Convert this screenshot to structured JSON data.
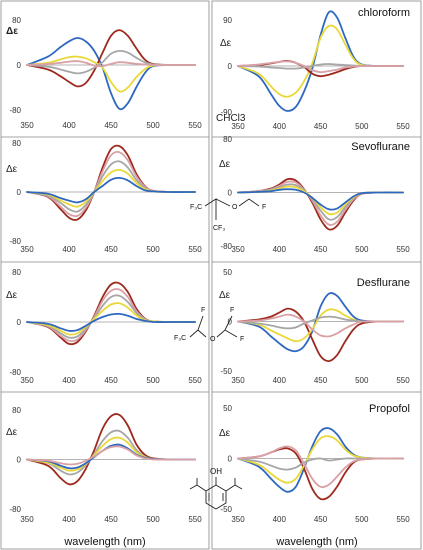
{
  "x_axis_label": "wavelength (nm)",
  "chart_data": [
    {
      "type": "line",
      "id": "chloroform-left",
      "title": "",
      "ylabel": "Δε",
      "xlim": [
        350,
        550
      ],
      "ylim": [
        -80,
        80
      ],
      "xticks": [
        350,
        400,
        450,
        500,
        550
      ],
      "yticks": [
        -80,
        0,
        80
      ],
      "x": [
        350,
        375,
        390,
        400,
        410,
        420,
        430,
        440,
        450,
        460,
        470,
        480,
        490,
        500,
        520,
        550
      ],
      "series": [
        {
          "color": "#2e68c0",
          "values": [
            0,
            15,
            32,
            42,
            48,
            42,
            25,
            -5,
            -50,
            -78,
            -68,
            -40,
            -15,
            -2,
            0,
            0
          ]
        },
        {
          "color": "#9e2a1e",
          "values": [
            0,
            -8,
            -20,
            -30,
            -38,
            -32,
            -10,
            22,
            52,
            62,
            52,
            30,
            10,
            2,
            0,
            0
          ]
        },
        {
          "color": "#e8d83a",
          "values": [
            0,
            4,
            10,
            14,
            15,
            12,
            5,
            -5,
            -30,
            -47,
            -40,
            -22,
            -8,
            -1,
            0,
            0
          ]
        },
        {
          "color": "#a6a6a6",
          "values": [
            0,
            -3,
            -8,
            -12,
            -15,
            -12,
            -5,
            5,
            20,
            25,
            22,
            13,
            5,
            1,
            0,
            0
          ]
        },
        {
          "color": "#d9a0a6",
          "values": [
            0,
            2,
            4,
            6,
            7,
            4,
            -1,
            -2,
            2,
            5,
            4,
            2,
            1,
            0,
            0,
            0
          ]
        }
      ]
    },
    {
      "type": "line",
      "id": "chloroform-right",
      "title": "chloroform",
      "ylabel": "Δε",
      "annotation": "CHCl3",
      "xlim": [
        350,
        550
      ],
      "ylim": [
        -90,
        90
      ],
      "xticks": [
        350,
        400,
        450,
        500,
        550
      ],
      "yticks": [
        -90,
        0,
        90
      ],
      "x": [
        350,
        375,
        390,
        400,
        410,
        420,
        430,
        440,
        450,
        460,
        470,
        480,
        490,
        500,
        520,
        550
      ],
      "series": [
        {
          "color": "#2e68c0",
          "values": [
            0,
            -20,
            -55,
            -78,
            -88,
            -80,
            -50,
            -5,
            60,
            105,
            95,
            55,
            18,
            3,
            0,
            0
          ]
        },
        {
          "color": "#e8d83a",
          "values": [
            0,
            -15,
            -40,
            -55,
            -60,
            -52,
            -30,
            5,
            55,
            78,
            72,
            42,
            14,
            2,
            0,
            0
          ]
        },
        {
          "color": "#9e2a1e",
          "values": [
            0,
            2,
            5,
            8,
            10,
            6,
            -2,
            -15,
            -20,
            -17,
            -12,
            -6,
            -2,
            0,
            0,
            0
          ]
        },
        {
          "color": "#a6a6a6",
          "values": [
            0,
            -1,
            -3,
            -4,
            -5,
            -5,
            -3,
            0,
            3,
            4,
            3,
            2,
            1,
            0,
            0,
            0
          ]
        },
        {
          "color": "#d9a0a6",
          "values": [
            0,
            3,
            6,
            8,
            9,
            6,
            0,
            -8,
            -12,
            -10,
            -7,
            -3,
            -1,
            0,
            0,
            0
          ]
        }
      ]
    },
    {
      "type": "line",
      "id": "sevoflurane-left",
      "title": "",
      "ylabel": "Δε",
      "xlim": [
        350,
        550
      ],
      "ylim": [
        -80,
        80
      ],
      "xticks": [
        350,
        400,
        450,
        500,
        550
      ],
      "yticks": [
        -80,
        0,
        80
      ],
      "x": [
        350,
        375,
        390,
        400,
        410,
        420,
        430,
        440,
        450,
        460,
        470,
        480,
        490,
        500,
        520,
        550
      ],
      "series": [
        {
          "color": "#9e2a1e",
          "values": [
            0,
            -8,
            -28,
            -42,
            -45,
            -30,
            0,
            40,
            70,
            75,
            60,
            30,
            10,
            2,
            0,
            0
          ]
        },
        {
          "color": "#d9a0a6",
          "values": [
            0,
            -7,
            -24,
            -36,
            -39,
            -26,
            0,
            34,
            60,
            65,
            52,
            26,
            9,
            2,
            0,
            0
          ]
        },
        {
          "color": "#a6a6a6",
          "values": [
            0,
            -6,
            -18,
            -28,
            -32,
            -21,
            0,
            26,
            45,
            50,
            40,
            20,
            7,
            1,
            0,
            0
          ]
        },
        {
          "color": "#e8d83a",
          "values": [
            0,
            -4,
            -14,
            -20,
            -24,
            -16,
            0,
            18,
            32,
            36,
            30,
            15,
            5,
            1,
            0,
            0
          ]
        },
        {
          "color": "#2e68c0",
          "values": [
            0,
            -3,
            -10,
            -14,
            -17,
            -12,
            0,
            10,
            20,
            23,
            19,
            10,
            3,
            1,
            0,
            0
          ]
        }
      ]
    },
    {
      "type": "line",
      "id": "sevoflurane-right",
      "title": "Sevoflurane",
      "ylabel": "Δε",
      "annotation_molecule": "sevoflurane",
      "xlim": [
        350,
        550
      ],
      "ylim": [
        -80,
        80
      ],
      "xticks": [
        350,
        400,
        450,
        500,
        550
      ],
      "yticks": [
        -80,
        0,
        80
      ],
      "x": [
        350,
        375,
        390,
        400,
        410,
        420,
        430,
        440,
        450,
        460,
        470,
        480,
        490,
        500,
        520,
        550
      ],
      "series": [
        {
          "color": "#9e2a1e",
          "values": [
            0,
            2,
            6,
            12,
            20,
            18,
            5,
            -15,
            -40,
            -55,
            -50,
            -30,
            -12,
            -2,
            0,
            0
          ]
        },
        {
          "color": "#d9a0a6",
          "values": [
            0,
            2,
            5,
            10,
            16,
            15,
            4,
            -12,
            -34,
            -48,
            -44,
            -26,
            -10,
            -2,
            0,
            0
          ]
        },
        {
          "color": "#a6a6a6",
          "values": [
            0,
            1,
            4,
            8,
            12,
            11,
            3,
            -10,
            -27,
            -40,
            -37,
            -22,
            -8,
            -1,
            0,
            0
          ]
        },
        {
          "color": "#e8d83a",
          "values": [
            0,
            1,
            3,
            6,
            9,
            8,
            2,
            -8,
            -22,
            -32,
            -30,
            -18,
            -7,
            -1,
            0,
            0
          ]
        },
        {
          "color": "#2e68c0",
          "values": [
            0,
            1,
            2,
            4,
            5,
            4,
            0,
            -8,
            -18,
            -25,
            -24,
            -15,
            -6,
            -1,
            0,
            0
          ]
        }
      ]
    },
    {
      "type": "line",
      "id": "desflurane-left",
      "title": "",
      "ylabel": "Δε",
      "xlim": [
        350,
        550
      ],
      "ylim": [
        -80,
        80
      ],
      "xticks": [
        350,
        400,
        450,
        500,
        550
      ],
      "yticks": [
        -80,
        0,
        80
      ],
      "x": [
        350,
        375,
        390,
        400,
        410,
        420,
        430,
        440,
        450,
        460,
        470,
        480,
        490,
        500,
        520,
        550
      ],
      "series": [
        {
          "color": "#9e2a1e",
          "values": [
            0,
            -8,
            -25,
            -35,
            -32,
            -15,
            10,
            40,
            60,
            62,
            48,
            22,
            6,
            1,
            0,
            0
          ]
        },
        {
          "color": "#d9a0a6",
          "values": [
            0,
            -7,
            -22,
            -30,
            -28,
            -13,
            8,
            34,
            50,
            52,
            40,
            18,
            5,
            1,
            0,
            0
          ]
        },
        {
          "color": "#a6a6a6",
          "values": [
            0,
            -6,
            -18,
            -25,
            -23,
            -11,
            6,
            26,
            40,
            42,
            32,
            15,
            4,
            1,
            0,
            0
          ]
        },
        {
          "color": "#e8d83a",
          "values": [
            0,
            -5,
            -14,
            -20,
            -18,
            -8,
            5,
            18,
            28,
            30,
            23,
            11,
            3,
            1,
            0,
            0
          ]
        },
        {
          "color": "#2e68c0",
          "values": [
            0,
            -3,
            -10,
            -14,
            -13,
            -6,
            2,
            8,
            12,
            13,
            10,
            5,
            2,
            0,
            0,
            0
          ]
        }
      ]
    },
    {
      "type": "line",
      "id": "desflurane-right",
      "title": "Desflurane",
      "ylabel": "Δε",
      "annotation_molecule": "desflurane",
      "xlim": [
        350,
        550
      ],
      "ylim": [
        -50,
        50
      ],
      "xticks": [
        350,
        400,
        450,
        500,
        550
      ],
      "yticks": [
        -50,
        0,
        50
      ],
      "x": [
        350,
        375,
        390,
        400,
        410,
        420,
        430,
        440,
        450,
        460,
        470,
        480,
        490,
        500,
        520,
        550
      ],
      "series": [
        {
          "color": "#2e68c0",
          "values": [
            0,
            -5,
            -15,
            -22,
            -28,
            -30,
            -25,
            -10,
            15,
            28,
            26,
            15,
            5,
            1,
            0,
            0
          ]
        },
        {
          "color": "#9e2a1e",
          "values": [
            0,
            2,
            5,
            9,
            13,
            10,
            0,
            -18,
            -35,
            -40,
            -34,
            -20,
            -8,
            -2,
            0,
            0
          ]
        },
        {
          "color": "#e8d83a",
          "values": [
            0,
            -3,
            -9,
            -13,
            -17,
            -20,
            -17,
            -8,
            6,
            12,
            11,
            6,
            2,
            0,
            0,
            0
          ]
        },
        {
          "color": "#a6a6a6",
          "values": [
            0,
            -2,
            -4,
            -6,
            -7,
            -6,
            -2,
            1,
            4,
            5,
            4,
            2,
            1,
            0,
            0,
            0
          ]
        },
        {
          "color": "#d9a0a6",
          "values": [
            0,
            1,
            3,
            5,
            7,
            5,
            0,
            -8,
            -14,
            -15,
            -12,
            -7,
            -3,
            0,
            0,
            0
          ]
        }
      ]
    },
    {
      "type": "line",
      "id": "propofol-left",
      "title": "",
      "ylabel": "Δε",
      "xlim": [
        350,
        550
      ],
      "ylim": [
        -80,
        80
      ],
      "xticks": [
        350,
        400,
        450,
        500,
        550
      ],
      "yticks": [
        -80,
        0,
        80
      ],
      "x": [
        350,
        375,
        390,
        400,
        410,
        420,
        430,
        440,
        450,
        460,
        470,
        480,
        490,
        500,
        520,
        550
      ],
      "series": [
        {
          "color": "#9e2a1e",
          "values": [
            0,
            -10,
            -30,
            -40,
            -35,
            -15,
            15,
            50,
            70,
            72,
            55,
            25,
            8,
            2,
            0,
            0
          ]
        },
        {
          "color": "#a6a6a6",
          "values": [
            0,
            -6,
            -18,
            -24,
            -21,
            -9,
            9,
            30,
            44,
            46,
            35,
            16,
            5,
            1,
            0,
            0
          ]
        },
        {
          "color": "#e8d83a",
          "values": [
            0,
            -5,
            -13,
            -18,
            -16,
            -7,
            7,
            22,
            33,
            35,
            27,
            12,
            4,
            1,
            0,
            0
          ]
        },
        {
          "color": "#2e68c0",
          "values": [
            0,
            -3,
            -10,
            -14,
            -13,
            -6,
            4,
            14,
            22,
            24,
            18,
            8,
            3,
            1,
            0,
            0
          ]
        },
        {
          "color": "#d9a0a6",
          "values": [
            0,
            -2,
            -6,
            -8,
            -7,
            -2,
            5,
            14,
            20,
            21,
            16,
            7,
            2,
            0,
            0,
            0
          ]
        }
      ]
    },
    {
      "type": "line",
      "id": "propofol-right",
      "title": "Propofol",
      "ylabel": "Δε",
      "annotation_molecule_label": "OH",
      "xlim": [
        350,
        550
      ],
      "ylim": [
        -50,
        50
      ],
      "xticks": [
        350,
        400,
        450,
        500,
        550
      ],
      "yticks": [
        -50,
        0,
        50
      ],
      "x": [
        350,
        375,
        390,
        400,
        410,
        420,
        430,
        440,
        450,
        460,
        470,
        480,
        490,
        500,
        520,
        550
      ],
      "series": [
        {
          "color": "#2e68c0",
          "values": [
            0,
            -8,
            -20,
            -28,
            -33,
            -28,
            -10,
            12,
            27,
            30,
            24,
            12,
            4,
            1,
            0,
            0
          ]
        },
        {
          "color": "#9e2a1e",
          "values": [
            0,
            2,
            6,
            9,
            10,
            5,
            -10,
            -30,
            -40,
            -38,
            -28,
            -14,
            -4,
            -1,
            0,
            0
          ]
        },
        {
          "color": "#e8d83a",
          "values": [
            0,
            -6,
            -15,
            -21,
            -24,
            -20,
            -7,
            9,
            20,
            22,
            18,
            9,
            3,
            1,
            0,
            0
          ]
        },
        {
          "color": "#a6a6a6",
          "values": [
            0,
            -3,
            -7,
            -10,
            -11,
            -9,
            -4,
            -1,
            0,
            -2,
            -1,
            0,
            0,
            0,
            0,
            0
          ]
        },
        {
          "color": "#d9a0a6",
          "values": [
            0,
            2,
            6,
            10,
            12,
            8,
            -5,
            -20,
            -28,
            -26,
            -18,
            -9,
            -3,
            -1,
            0,
            0
          ]
        }
      ]
    }
  ]
}
